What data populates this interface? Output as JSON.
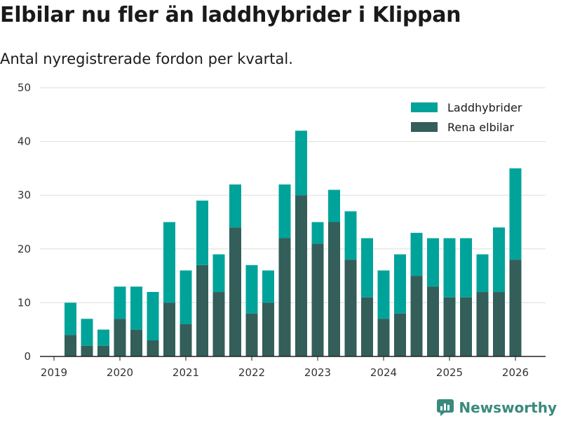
{
  "title": "Elbilar nu fler än laddhybrider i Klippan",
  "subtitle": "Antal nyregistrerade fordon per kvartal.",
  "brand": {
    "name": "Newsworthy",
    "icon": "newsworthy-logo-icon",
    "color": "#3a8a7e"
  },
  "colors": {
    "laddhybrider": "#00a39a",
    "elbilar": "#335e5a",
    "grid": "#dddddd",
    "axis": "#222222"
  },
  "chart_data": {
    "type": "bar",
    "stacked": true,
    "x_quarters_start": "2019-Q2",
    "categories": [
      "2019 Q2",
      "2019 Q3",
      "2019 Q4",
      "2020 Q1",
      "2020 Q2",
      "2020 Q3",
      "2020 Q4",
      "2021 Q1",
      "2021 Q2",
      "2021 Q3",
      "2021 Q4",
      "2022 Q1",
      "2022 Q2",
      "2022 Q3",
      "2022 Q4",
      "2023 Q1",
      "2023 Q2",
      "2023 Q3",
      "2023 Q4",
      "2024 Q1",
      "2024 Q2",
      "2024 Q3",
      "2024 Q4",
      "2025 Q1",
      "2025 Q2",
      "2025 Q3",
      "2025 Q4",
      "2026 Q1"
    ],
    "series": [
      {
        "name": "Rena elbilar",
        "values": [
          4,
          2,
          2,
          7,
          5,
          3,
          10,
          6,
          17,
          12,
          24,
          8,
          10,
          22,
          30,
          21,
          25,
          18,
          11,
          7,
          8,
          15,
          13,
          11,
          11,
          12,
          12,
          18
        ]
      },
      {
        "name": "Laddhybrider",
        "values": [
          6,
          5,
          3,
          6,
          8,
          9,
          15,
          10,
          12,
          7,
          8,
          9,
          6,
          10,
          12,
          4,
          6,
          9,
          11,
          9,
          11,
          8,
          9,
          11,
          11,
          7,
          12,
          17
        ]
      }
    ],
    "legend": [
      "Laddhybrider",
      "Rena elbilar"
    ],
    "legend_position": "top-right",
    "x_ticks": [
      "2019",
      "2020",
      "2021",
      "2022",
      "2023",
      "2024",
      "2025",
      "2026"
    ],
    "y_ticks": [
      0,
      10,
      20,
      30,
      40,
      50
    ],
    "ylim": [
      0,
      50
    ],
    "grid": true,
    "xlabel": "",
    "ylabel": ""
  }
}
